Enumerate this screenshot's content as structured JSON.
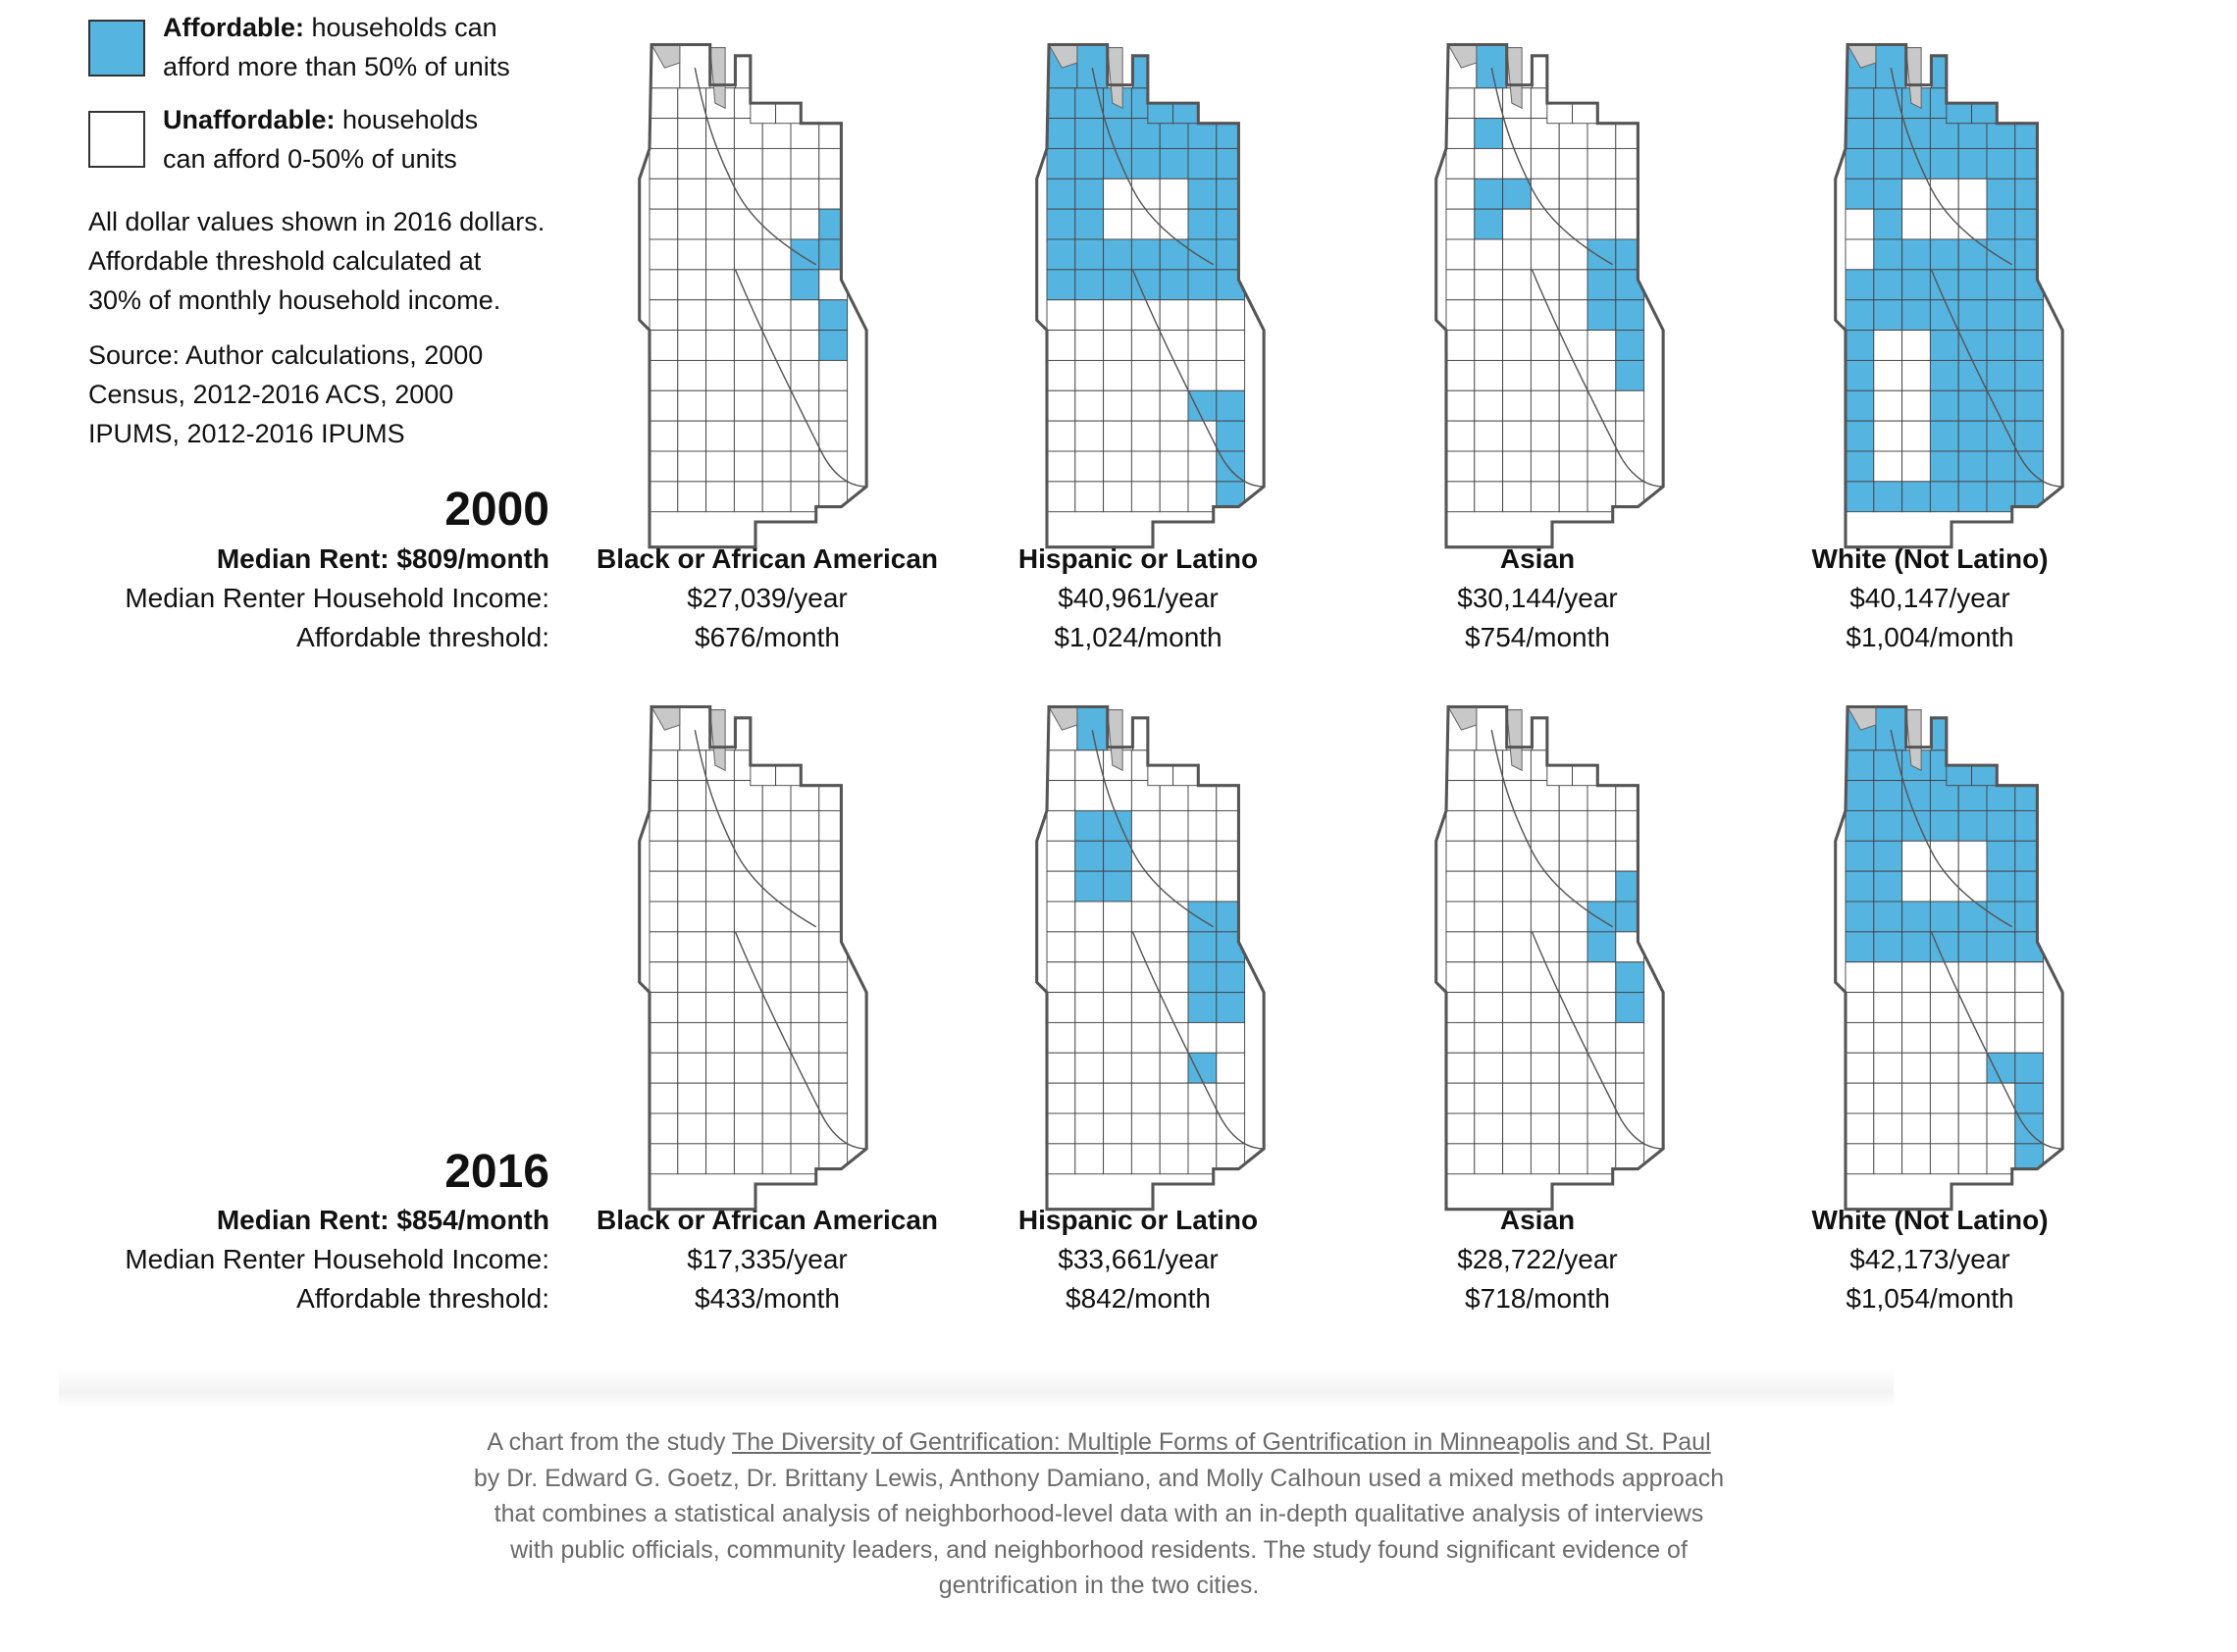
{
  "legend": {
    "affordable_label": "Affordable:",
    "affordable_desc_1": " households can",
    "affordable_desc_2": "afford more than 50% of units",
    "unaffordable_label": "Unaffordable:",
    "unaffordable_desc_1": " households",
    "unaffordable_desc_2": "can afford 0-50% of units",
    "affordable_color": "#56b4e0",
    "unaffordable_color": "#ffffff"
  },
  "notes": {
    "line1": "All dollar values shown in 2016 dollars.",
    "line2": "Affordable threshold calculated at",
    "line3": "30% of monthly household income.",
    "source1": "Source: Author calculations, 2000",
    "source2": "Census, 2012-2016 ACS, 2000",
    "source3": "IPUMS, 2012-2016 IPUMS"
  },
  "row_labels": {
    "income": "Median Renter Household Income:",
    "threshold": "Affordable threshold:"
  },
  "years": [
    {
      "year": "2000",
      "median_rent": "Median Rent: $809/month",
      "groups": [
        {
          "name": "Black or African American",
          "income": "$27,039/year",
          "threshold": "$676/month",
          "coverage": "low"
        },
        {
          "name": "Hispanic or Latino",
          "income": "$40,961/year",
          "threshold": "$1,024/month",
          "coverage": "high"
        },
        {
          "name": "Asian",
          "income": "$30,144/year",
          "threshold": "$754/month",
          "coverage": "medium-low"
        },
        {
          "name": "White (Not Latino)",
          "income": "$40,147/year",
          "threshold": "$1,004/month",
          "coverage": "very-high"
        }
      ]
    },
    {
      "year": "2016",
      "median_rent": "Median Rent: $854/month",
      "groups": [
        {
          "name": "Black or African American",
          "income": "$17,335/year",
          "threshold": "$433/month",
          "coverage": "none"
        },
        {
          "name": "Hispanic or Latino",
          "income": "$33,661/year",
          "threshold": "$842/month",
          "coverage": "medium"
        },
        {
          "name": "Asian",
          "income": "$28,722/year",
          "threshold": "$718/month",
          "coverage": "low"
        },
        {
          "name": "White (Not Latino)",
          "income": "$42,173/year",
          "threshold": "$1,054/month",
          "coverage": "high"
        }
      ]
    }
  ],
  "caption": {
    "prefix": "A chart from the study ",
    "study_title": "The Diversity of Gentrification: Multiple Forms of Gentrification in Minneapolis and St. Paul",
    "line2": "by Dr. Edward G. Goetz, Dr. Brittany Lewis, Anthony Damiano, and Molly Calhoun used a mixed methods approach",
    "line3": "that combines a statistical analysis of neighborhood-level data with an in-depth qualitative analysis of interviews",
    "line4": "with public officials, community leaders, and neighborhood residents. The study found significant evidence of",
    "line5": "gentrification in the two cities."
  }
}
